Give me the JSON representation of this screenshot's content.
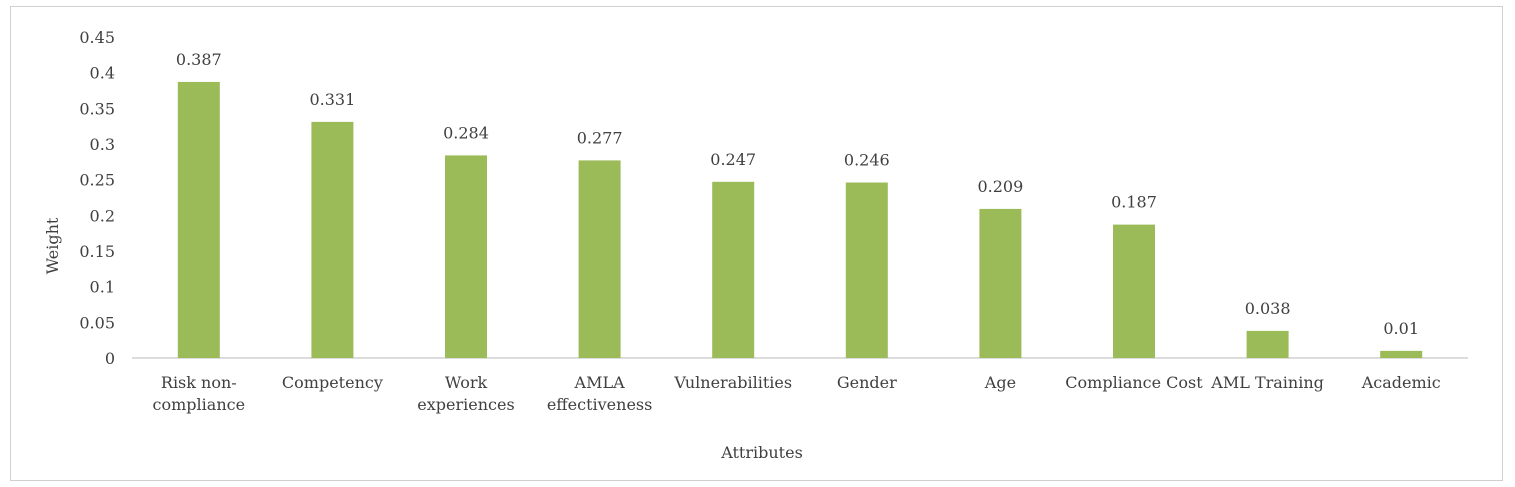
{
  "chart_data": {
    "type": "bar",
    "title": "",
    "xlabel": "Attributes",
    "ylabel": "Weight",
    "ylim": [
      0,
      0.45
    ],
    "yticks": [
      "0",
      "0.05",
      "0.1",
      "0.15",
      "0.2",
      "0.25",
      "0.3",
      "0.35",
      "0.4",
      "0.45"
    ],
    "grid": false,
    "legend": "none",
    "bar_color": "#9bbb59",
    "categories": [
      [
        "Risk non-",
        "compliance"
      ],
      [
        "Competency"
      ],
      [
        "Work",
        "experiences"
      ],
      [
        "AMLA",
        "effectiveness"
      ],
      [
        "Vulnerabilities"
      ],
      [
        "Gender"
      ],
      [
        "Age"
      ],
      [
        "Compliance Cost"
      ],
      [
        "AML Training"
      ],
      [
        "Academic"
      ]
    ],
    "values": [
      0.387,
      0.331,
      0.284,
      0.277,
      0.247,
      0.246,
      0.209,
      0.187,
      0.038,
      0.01
    ],
    "data_labels": [
      "0.387",
      "0.331",
      "0.284",
      "0.277",
      "0.247",
      "0.246",
      "0.209",
      "0.187",
      "0.038",
      "0.01"
    ]
  }
}
